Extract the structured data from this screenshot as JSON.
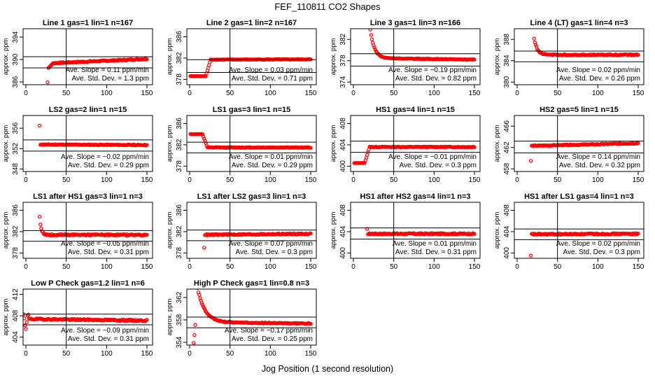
{
  "figure": {
    "title": "FEF_110811  CO2 Shapes",
    "xlabel": "Jog Position (1 second resolution)",
    "ylabel": "approx. ppm"
  },
  "colors": {
    "points": "#ff0000",
    "axes": "#000000",
    "background": "#ffffff"
  },
  "chart_data": [
    {
      "type": "scatter",
      "title": "Line 1 gas=1 lin=1 n=167",
      "xticks": [
        0,
        50,
        100,
        150
      ],
      "xlim": [
        0,
        150
      ],
      "yticks": [
        386,
        390,
        394
      ],
      "ylim": [
        385.5,
        395.5
      ],
      "hlines": [
        388.5,
        390.5
      ],
      "vline": 50,
      "slope_text": "Ave. Slope =  0.11  ppm/min",
      "sd_text": "Ave. Std. Dev. =  1.3  ppm",
      "shape": {
        "kind": "rise",
        "start": 377,
        "end": 389.3,
        "x_step": 25,
        "drift": 0.8,
        "noise": 0.1
      }
    },
    {
      "type": "scatter",
      "title": "Line 2 gas=1 lin=2 n=167",
      "xticks": [
        0,
        50,
        100,
        150
      ],
      "xlim": [
        0,
        150
      ],
      "yticks": [
        378,
        382,
        386
      ],
      "ylim": [
        377,
        387.5
      ],
      "hlines": [
        379.3,
        381.7
      ],
      "vline": 50,
      "slope_text": "Ave. Slope =  0.03  ppm/min",
      "sd_text": "Ave. Std. Dev. =  0.71  ppm",
      "shape": {
        "kind": "step",
        "start": 378.6,
        "end": 381.7,
        "x_step": 20,
        "drift": 0.05,
        "noise": 0.06
      }
    },
    {
      "type": "scatter",
      "title": "Line 3 gas=1 lin=3 n=166",
      "xticks": [
        0,
        50,
        100,
        150
      ],
      "xlim": [
        0,
        150
      ],
      "yticks": [
        374,
        378,
        382
      ],
      "ylim": [
        373.5,
        384
      ],
      "hlines": [
        377.0,
        379.3
      ],
      "vline": 50,
      "slope_text": "Ave. Slope = −0.19  ppm/min",
      "sd_text": "Ave. Std. Dev. =  0.82  ppm",
      "shape": {
        "kind": "decay",
        "start": 385,
        "end": 378.5,
        "x_step": 20,
        "tau": 5,
        "drift": -0.3,
        "noise": 0.06
      }
    },
    {
      "type": "scatter",
      "title": "Line 4 (LT) gas=1 lin=4 n=3",
      "xticks": [
        0,
        50,
        100,
        150
      ],
      "xlim": [
        0,
        150
      ],
      "yticks": [
        380,
        384,
        388
      ],
      "ylim": [
        379.5,
        390
      ],
      "hlines": [
        383.8,
        385.8
      ],
      "vline": 50,
      "slope_text": "Ave. Slope =  0.02  ppm/min",
      "sd_text": "Ave. Std. Dev. =  0.26  ppm",
      "shape": {
        "kind": "decay",
        "start": 389,
        "end": 385.1,
        "x_step": 20,
        "tau": 4,
        "drift": 0,
        "noise": 0.1
      }
    },
    {
      "type": "scatter",
      "title": "LS2 gas=2 lin=1 n=15",
      "xticks": [
        0,
        50,
        100,
        150
      ],
      "xlim": [
        0,
        150
      ],
      "yticks": [
        348,
        352,
        356
      ],
      "ylim": [
        347.5,
        358.5
      ],
      "hlines": [
        351.5,
        353.7
      ],
      "vline": 50,
      "slope_text": "Ave. Slope = −0.02  ppm/min",
      "sd_text": "Ave. Std. Dev. =  0.29  ppm",
      "shape": {
        "kind": "flat",
        "start": 356.5,
        "end": 352.8,
        "x_step": 16,
        "drift": -0.1,
        "noise": 0.08
      }
    },
    {
      "type": "scatter",
      "title": "LS1 gas=3 lin=1 n=15",
      "xticks": [
        0,
        50,
        100,
        150
      ],
      "xlim": [
        0,
        150
      ],
      "yticks": [
        378,
        382,
        386
      ],
      "ylim": [
        377,
        387.5
      ],
      "hlines": [
        380.5,
        382.5
      ],
      "vline": 50,
      "slope_text": "Ave. Slope =  0.01  ppm/min",
      "sd_text": "Ave. Std. Dev. =  0.29  ppm",
      "shape": {
        "kind": "step",
        "start": 384,
        "end": 381.5,
        "x_step": 16,
        "drift": 0,
        "noise": 0.07
      }
    },
    {
      "type": "scatter",
      "title": "HS1 gas=4 lin=1 n=15",
      "xticks": [
        0,
        50,
        100,
        150
      ],
      "xlim": [
        0,
        150
      ],
      "yticks": [
        400,
        404,
        408
      ],
      "ylim": [
        399,
        409.5
      ],
      "hlines": [
        402.6,
        404.7
      ],
      "vline": 50,
      "slope_text": "Ave. Slope = −0.01  ppm/min",
      "sd_text": "Ave. Std. Dev. =  0.3  ppm",
      "shape": {
        "kind": "step",
        "start": 400.6,
        "end": 403.6,
        "x_step": 14,
        "drift": 0,
        "noise": 0.07
      }
    },
    {
      "type": "scatter",
      "title": "HS2 gas=5 lin=1 n=15",
      "xticks": [
        0,
        50,
        100,
        150
      ],
      "xlim": [
        0,
        150
      ],
      "yticks": [
        458,
        462,
        466
      ],
      "ylim": [
        457.5,
        468
      ],
      "hlines": [
        461.0,
        463.2
      ],
      "vline": 50,
      "slope_text": "Ave. Slope =  0.14  ppm/min",
      "sd_text": "Ave. Std. Dev. =  0.32  ppm",
      "shape": {
        "kind": "flat",
        "start": 459.5,
        "end": 462.3,
        "x_step": 16,
        "drift": 0.5,
        "noise": 0.09
      }
    },
    {
      "type": "scatter",
      "title": "LS1 after HS1 gas=3 lin=1 n=3",
      "xticks": [
        0,
        50,
        100,
        150
      ],
      "xlim": [
        0,
        150
      ],
      "yticks": [
        378,
        382,
        386
      ],
      "ylim": [
        377,
        387.5
      ],
      "hlines": [
        380.2,
        382.2
      ],
      "vline": 50,
      "slope_text": "Ave. Slope = −0.05  ppm/min",
      "sd_text": "Ave. Std. Dev. =  0.31  ppm",
      "shape": {
        "kind": "decay",
        "start": 387,
        "end": 381.4,
        "x_step": 16,
        "tau": 2,
        "drift": 0,
        "noise": 0.12
      }
    },
    {
      "type": "scatter",
      "title": "LS1 after LS2 gas=3 lin=1 n=3",
      "xticks": [
        0,
        50,
        100,
        150
      ],
      "xlim": [
        0,
        150
      ],
      "yticks": [
        378,
        382,
        386
      ],
      "ylim": [
        377,
        387.5
      ],
      "hlines": [
        380.3,
        382.3
      ],
      "vline": 50,
      "slope_text": "Ave. Slope =  0.07  ppm/min",
      "sd_text": "Ave. Std. Dev. =  0.3  ppm",
      "shape": {
        "kind": "flat",
        "start": 379,
        "end": 381.4,
        "x_step": 17,
        "drift": 0.2,
        "noise": 0.12
      }
    },
    {
      "type": "scatter",
      "title": "HS1 after HS2 gas=4 lin=1 n=3",
      "xticks": [
        0,
        50,
        100,
        150
      ],
      "xlim": [
        0,
        150
      ],
      "yticks": [
        400,
        404,
        408
      ],
      "ylim": [
        399,
        409.5
      ],
      "hlines": [
        402.6,
        404.7
      ],
      "vline": 50,
      "slope_text": "Ave. Slope =  0.01  ppm/min",
      "sd_text": "Ave. Std. Dev. =  0.31  ppm",
      "shape": {
        "kind": "flat",
        "start": 404.5,
        "end": 403.6,
        "x_step": 16,
        "drift": 0,
        "noise": 0.12
      }
    },
    {
      "type": "scatter",
      "title": "HS1 after LS1 gas=4 lin=1 n=3",
      "xticks": [
        0,
        50,
        100,
        150
      ],
      "xlim": [
        0,
        150
      ],
      "yticks": [
        400,
        404,
        408
      ],
      "ylim": [
        399,
        409.5
      ],
      "hlines": [
        402.5,
        404.5
      ],
      "vline": 50,
      "slope_text": "Ave. Slope =  0.02  ppm/min",
      "sd_text": "Ave. Std. Dev. =  0.3  ppm",
      "shape": {
        "kind": "flat",
        "start": 399.5,
        "end": 403.5,
        "x_step": 16,
        "drift": 0.1,
        "noise": 0.12
      }
    },
    {
      "type": "scatter",
      "title": "Low P Check gas=1.2 lin=1 n=6",
      "xticks": [
        0,
        50,
        100,
        150
      ],
      "xlim": [
        0,
        150
      ],
      "yticks": [
        404,
        408,
        412
      ],
      "ylim": [
        402.5,
        413
      ],
      "hlines": [
        406.3,
        408.3
      ],
      "vline": 50,
      "slope_text": "Ave. Slope = −0.09  ppm/min",
      "sd_text": "Ave. Std. Dev. =  0.31  ppm",
      "shape": {
        "kind": "flat",
        "start": 408.2,
        "end": 407.4,
        "x_step": 2,
        "drift": -0.3,
        "noise": 0.13,
        "head": [
          408.3,
          407.5,
          406.2,
          405.5,
          406.8,
          408.0
        ]
      }
    },
    {
      "type": "scatter",
      "title": "High P Check gas=1 lin=0.8 n=3",
      "xticks": [
        0,
        50,
        100,
        150
      ],
      "xlim": [
        0,
        150
      ],
      "yticks": [
        354,
        358,
        362
      ],
      "ylim": [
        353.5,
        363.5
      ],
      "hlines": [
        356.6,
        358.5
      ],
      "vline": 50,
      "slope_text": "Ave. Slope = −0.17  ppm/min",
      "sd_text": "Ave. Std. Dev. =  0.25  ppm",
      "shape": {
        "kind": "decay",
        "start": 366,
        "end": 357.6,
        "x_step": 7,
        "tau": 9,
        "drift": -0.25,
        "noise": 0.08,
        "head": [
          353.9,
          355.3,
          357.1
        ]
      }
    }
  ]
}
